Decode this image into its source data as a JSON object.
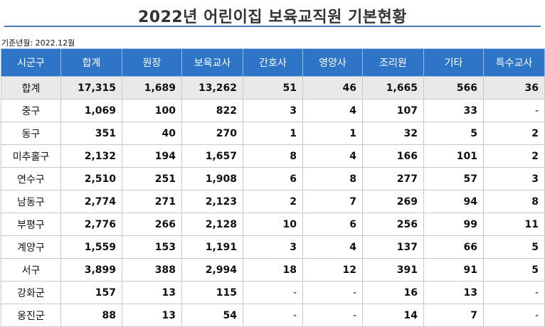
{
  "title": "2022년 어린이집 보육교직원 기본현황",
  "basis": "기준년월: 2022.12월",
  "table": {
    "headers": [
      "시군구",
      "합계",
      "원장",
      "보육교사",
      "간호사",
      "영양사",
      "조리원",
      "기타",
      "특수교사"
    ],
    "rows": [
      [
        "합계",
        "17,315",
        "1,689",
        "13,262",
        "51",
        "46",
        "1,665",
        "566",
        "36"
      ],
      [
        "중구",
        "1,069",
        "100",
        "822",
        "3",
        "4",
        "107",
        "33",
        "-"
      ],
      [
        "동구",
        "351",
        "40",
        "270",
        "1",
        "1",
        "32",
        "5",
        "2"
      ],
      [
        "미추홀구",
        "2,132",
        "194",
        "1,657",
        "8",
        "4",
        "166",
        "101",
        "2"
      ],
      [
        "연수구",
        "2,510",
        "251",
        "1,908",
        "6",
        "8",
        "277",
        "57",
        "3"
      ],
      [
        "남동구",
        "2,774",
        "271",
        "2,123",
        "2",
        "7",
        "269",
        "94",
        "8"
      ],
      [
        "부평구",
        "2,776",
        "266",
        "2,128",
        "10",
        "6",
        "256",
        "99",
        "11"
      ],
      [
        "계양구",
        "1,559",
        "153",
        "1,191",
        "3",
        "4",
        "137",
        "66",
        "5"
      ],
      [
        "서구",
        "3,899",
        "388",
        "2,994",
        "18",
        "12",
        "391",
        "91",
        "5"
      ],
      [
        "강화군",
        "157",
        "13",
        "115",
        "-",
        "-",
        "16",
        "13",
        "-"
      ],
      [
        "옹진군",
        "88",
        "13",
        "54",
        "-",
        "-",
        "14",
        "7",
        "-"
      ]
    ]
  },
  "colors": {
    "header_bg": "#2e75c8",
    "total_row_bg": "#e9e9e9",
    "title_rule": "#4a78b5"
  }
}
